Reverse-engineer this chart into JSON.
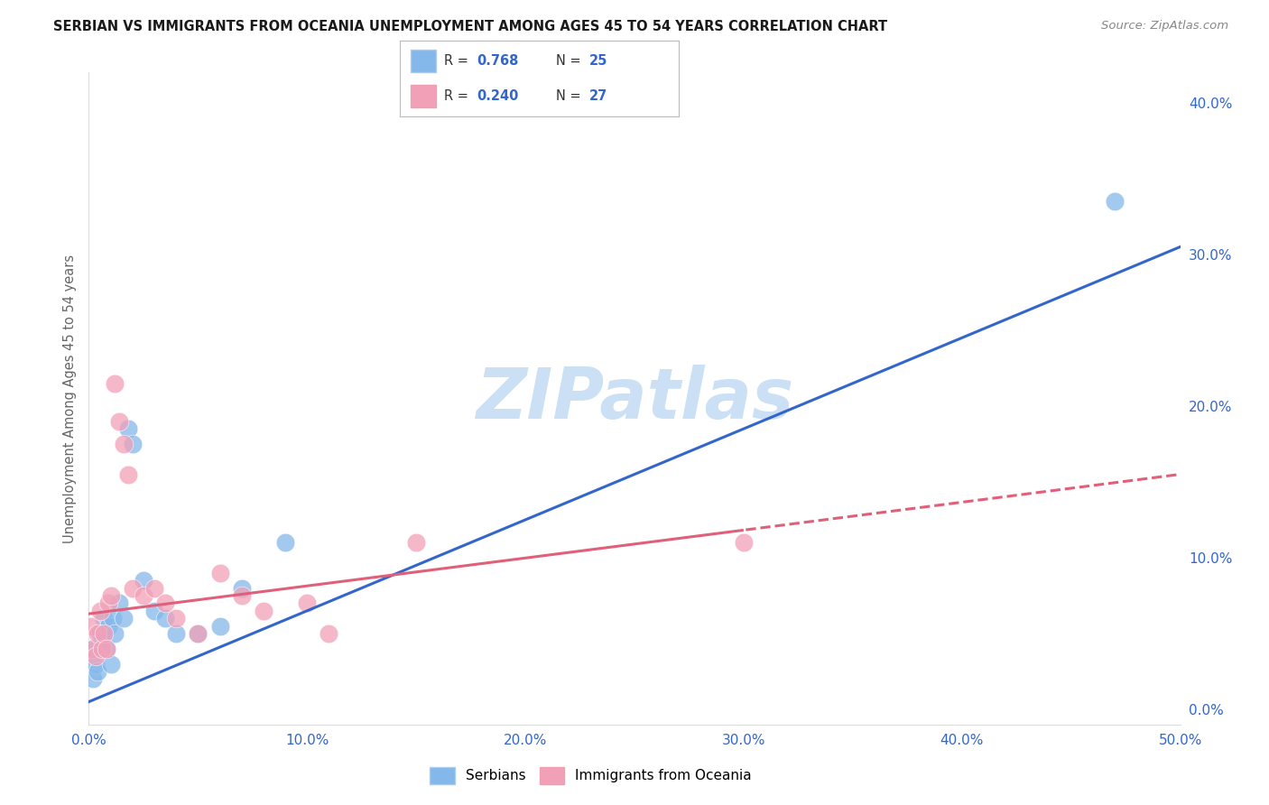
{
  "title": "SERBIAN VS IMMIGRANTS FROM OCEANIA UNEMPLOYMENT AMONG AGES 45 TO 54 YEARS CORRELATION CHART",
  "source": "Source: ZipAtlas.com",
  "ylabel": "Unemployment Among Ages 45 to 54 years",
  "xlim": [
    0.0,
    0.5
  ],
  "ylim": [
    -0.01,
    0.42
  ],
  "xticks": [
    0.0,
    0.1,
    0.2,
    0.3,
    0.4,
    0.5
  ],
  "yticks_right": [
    0.0,
    0.1,
    0.2,
    0.3,
    0.4
  ],
  "background": "#ffffff",
  "watermark": "ZIPatlas",
  "watermark_color": "#cce0f5",
  "series1_color": "#85b8ea",
  "series2_color": "#f2a0b8",
  "line1_color": "#3366cc",
  "line2_color": "#e0607a",
  "R1": 0.768,
  "N1": 25,
  "R2": 0.24,
  "N2": 27,
  "series1_label": "Serbians",
  "series2_label": "Immigrants from Oceania",
  "line1_x0": 0.0,
  "line1_y0": 0.005,
  "line1_x1": 0.5,
  "line1_y1": 0.305,
  "line2_x0": 0.0,
  "line2_y0": 0.063,
  "line2_x1": 0.5,
  "line2_y1": 0.155,
  "line2_solid_end": 0.3,
  "serbian_x": [
    0.001,
    0.002,
    0.003,
    0.004,
    0.005,
    0.006,
    0.007,
    0.008,
    0.009,
    0.01,
    0.011,
    0.012,
    0.014,
    0.016,
    0.018,
    0.02,
    0.025,
    0.03,
    0.035,
    0.04,
    0.05,
    0.06,
    0.07,
    0.09,
    0.47
  ],
  "serbian_y": [
    0.04,
    0.02,
    0.03,
    0.025,
    0.05,
    0.045,
    0.06,
    0.04,
    0.055,
    0.03,
    0.06,
    0.05,
    0.07,
    0.06,
    0.185,
    0.175,
    0.085,
    0.065,
    0.06,
    0.05,
    0.05,
    0.055,
    0.08,
    0.11,
    0.335
  ],
  "oceania_x": [
    0.001,
    0.002,
    0.003,
    0.004,
    0.005,
    0.006,
    0.007,
    0.008,
    0.009,
    0.01,
    0.012,
    0.014,
    0.016,
    0.018,
    0.02,
    0.025,
    0.03,
    0.035,
    0.04,
    0.05,
    0.06,
    0.07,
    0.08,
    0.1,
    0.11,
    0.15,
    0.3
  ],
  "oceania_y": [
    0.055,
    0.04,
    0.035,
    0.05,
    0.065,
    0.04,
    0.05,
    0.04,
    0.07,
    0.075,
    0.215,
    0.19,
    0.175,
    0.155,
    0.08,
    0.075,
    0.08,
    0.07,
    0.06,
    0.05,
    0.09,
    0.075,
    0.065,
    0.07,
    0.05,
    0.11,
    0.11
  ]
}
